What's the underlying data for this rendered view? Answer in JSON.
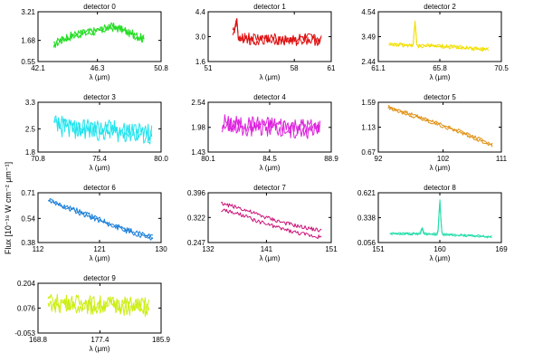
{
  "figure": {
    "ylabel": "Flux [10⁻¹⁸ W cm⁻² μm⁻¹]",
    "xlabel": "λ (μm)"
  },
  "chart_data": [
    {
      "type": "line",
      "title": "detector 0",
      "color": "#22dd22",
      "xlim": [
        42.1,
        50.8
      ],
      "xticks": [
        "42.1",
        "46.3",
        "50.8"
      ],
      "ylim": [
        0.55,
        3.21
      ],
      "yticks": [
        "0.55",
        "1.68",
        "3.21"
      ],
      "xlabel": "λ (μm)",
      "xrange": [
        43.2,
        49.6
      ],
      "series": [
        {
          "x": [
            43.2,
            44.0,
            44.8,
            45.6,
            46.4,
            47.2,
            48.0,
            48.8,
            49.6
          ],
          "y": [
            1.45,
            1.8,
            2.0,
            2.1,
            2.2,
            2.4,
            2.3,
            2.0,
            1.75
          ]
        }
      ],
      "noise": 0.2,
      "pair": 0.08
    },
    {
      "type": "line",
      "title": "detector 1",
      "color": "#dd1111",
      "xlim": [
        51,
        61
      ],
      "xticks": [
        "51",
        "58",
        "61"
      ],
      "ylim": [
        1.6,
        4.4
      ],
      "yticks": [
        "1.6",
        "3.0",
        "4.4"
      ],
      "xlabel": "λ (μm)",
      "xrange": [
        53.0,
        60.2
      ],
      "series": [
        {
          "x": [
            53.0,
            53.5,
            54.5,
            56.0,
            57.5,
            59.0,
            60.2
          ],
          "y": [
            3.3,
            3.0,
            2.85,
            2.85,
            2.8,
            2.85,
            2.75
          ]
        }
      ],
      "noise": 0.28,
      "pair": 0.1,
      "spikes": [
        {
          "x": 53.3,
          "h": 0.9
        }
      ]
    },
    {
      "type": "line",
      "title": "detector 2",
      "color": "#f2e000",
      "xlim": [
        61.1,
        70.5
      ],
      "xticks": [
        "61.1",
        "65.8",
        "70.5"
      ],
      "ylim": [
        2.44,
        4.54
      ],
      "yticks": [
        "2.44",
        "3.49",
        "4.54"
      ],
      "xlabel": "λ (μm)",
      "xrange": [
        61.9,
        69.5
      ],
      "series": [
        {
          "x": [
            61.9,
            63.0,
            64.0,
            65.5,
            67.0,
            68.5,
            69.5
          ],
          "y": [
            3.2,
            3.12,
            3.1,
            3.1,
            3.05,
            2.98,
            2.95
          ]
        }
      ],
      "noise": 0.07,
      "pair": 0.04,
      "spikes": [
        {
          "x": 63.9,
          "h": 1.0
        }
      ]
    },
    {
      "type": "line",
      "title": "detector 3",
      "color": "#22e4ee",
      "xlim": [
        70.8,
        80.0
      ],
      "xticks": [
        "70.8",
        "75.4",
        "80.0"
      ],
      "ylim": [
        1.8,
        3.3
      ],
      "yticks": [
        "1.8",
        "2.5",
        "3.3"
      ],
      "xlabel": "λ (μm)",
      "xrange": [
        72.0,
        79.3
      ],
      "series": [
        {
          "x": [
            72.0,
            74.0,
            76.0,
            78.0,
            79.3
          ],
          "y": [
            2.6,
            2.5,
            2.45,
            2.4,
            2.3
          ]
        }
      ],
      "noise": 0.28,
      "pair": 0.1
    },
    {
      "type": "line",
      "title": "detector 4",
      "color": "#dd22dd",
      "xlim": [
        80.1,
        88.9
      ],
      "xticks": [
        "80.1",
        "84.5",
        "88.9"
      ],
      "ylim": [
        1.43,
        2.54
      ],
      "yticks": [
        "1.43",
        "1.98",
        "2.54"
      ],
      "xlabel": "λ (μm)",
      "xrange": [
        81.1,
        88.1
      ],
      "series": [
        {
          "x": [
            81.1,
            83.0,
            85.0,
            87.0,
            88.1
          ],
          "y": [
            2.05,
            2.0,
            1.98,
            1.95,
            1.93
          ]
        }
      ],
      "noise": 0.18,
      "pair": 0.08
    },
    {
      "type": "line",
      "title": "detector 5",
      "color": "#e09010",
      "xlim": [
        92,
        111
      ],
      "xticks": [
        "92",
        "102",
        "111"
      ],
      "ylim": [
        0.67,
        1.59
      ],
      "yticks": [
        "0.67",
        "1.13",
        "1.59"
      ],
      "xlabel": "λ (μm)",
      "xrange": [
        93.5,
        109.6
      ],
      "series": [
        {
          "x": [
            93.5,
            97.0,
            101.0,
            105.0,
            109.6
          ],
          "y": [
            1.5,
            1.36,
            1.2,
            1.03,
            0.8
          ]
        }
      ],
      "noise": 0.03,
      "pair": 0.03
    },
    {
      "type": "line",
      "title": "detector 6",
      "color": "#1a7fd8",
      "xlim": [
        112,
        130
      ],
      "xticks": [
        "112",
        "121",
        "130"
      ],
      "ylim": [
        0.38,
        0.71
      ],
      "yticks": [
        "0.38",
        "0.54",
        "0.71"
      ],
      "xlabel": "λ (μm)",
      "xrange": [
        113.5,
        128.8
      ],
      "series": [
        {
          "x": [
            113.5,
            117.0,
            121.0,
            125.0,
            128.8
          ],
          "y": [
            0.66,
            0.6,
            0.53,
            0.46,
            0.41
          ]
        }
      ],
      "noise": 0.015,
      "pair": 0.012
    },
    {
      "type": "line",
      "title": "detector 7",
      "color": "#cc1177",
      "xlim": [
        132,
        151
      ],
      "xticks": [
        "132",
        "141",
        "151"
      ],
      "ylim": [
        0.247,
        0.396
      ],
      "yticks": [
        "0.247",
        "0.322",
        "0.396"
      ],
      "xlabel": "λ (μm)",
      "xrange": [
        134.0,
        149.5
      ],
      "series": [
        {
          "x": [
            134.0,
            137.0,
            140.0,
            143.0,
            146.0,
            149.5
          ],
          "y": [
            0.355,
            0.34,
            0.318,
            0.3,
            0.285,
            0.272
          ]
        }
      ],
      "noise": 0.006,
      "pair": 0.02
    },
    {
      "type": "line",
      "title": "detector 8",
      "color": "#22ddaa",
      "xlim": [
        151,
        169
      ],
      "xticks": [
        "151",
        "160",
        "169"
      ],
      "ylim": [
        0.056,
        0.621
      ],
      "yticks": [
        "0.056",
        "0.338",
        "0.621"
      ],
      "xlabel": "λ (μm)",
      "xrange": [
        152.7,
        167.6
      ],
      "series": [
        {
          "x": [
            152.7,
            156.0,
            160.0,
            164.0,
            167.6
          ],
          "y": [
            0.16,
            0.155,
            0.15,
            0.135,
            0.12
          ]
        }
      ],
      "noise": 0.01,
      "pair": 0.01,
      "spikes": [
        {
          "x": 157.4,
          "h": 0.07
        },
        {
          "x": 160.0,
          "h": 0.38
        }
      ]
    },
    {
      "type": "line",
      "title": "detector 9",
      "color": "#ccee11",
      "xlim": [
        168.8,
        185.9
      ],
      "xticks": [
        "168.8",
        "177.4",
        "185.9"
      ],
      "ylim": [
        -0.053,
        0.204
      ],
      "yticks": [
        "-0.053",
        "0.076",
        "0.204"
      ],
      "xlabel": "λ (μm)",
      "xrange": [
        170.2,
        184.2
      ],
      "series": [
        {
          "x": [
            170.2,
            174.0,
            178.0,
            182.0,
            184.2
          ],
          "y": [
            0.1,
            0.095,
            0.09,
            0.085,
            0.08
          ]
        }
      ],
      "noise": 0.04,
      "pair": 0.02
    }
  ]
}
